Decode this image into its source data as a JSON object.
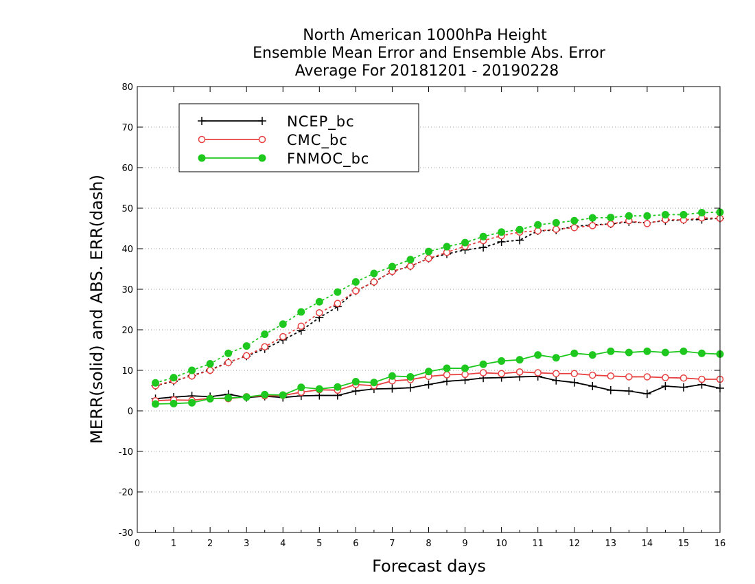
{
  "chart_data": {
    "type": "line",
    "title": [
      "North American 1000hPa Height",
      "Ensemble Mean Error and Ensemble Abs. Error",
      "Average For 20181201 - 20190228"
    ],
    "xlabel": "Forecast days",
    "ylabel": "MERR(solid) and ABS. ERR(dash)",
    "xlim": [
      0,
      16
    ],
    "ylim": [
      -30,
      80
    ],
    "xticks": [
      0,
      1,
      2,
      3,
      4,
      5,
      6,
      7,
      8,
      9,
      10,
      11,
      12,
      13,
      14,
      15,
      16
    ],
    "yticks": [
      -30,
      -20,
      -10,
      0,
      10,
      20,
      30,
      40,
      50,
      60,
      70,
      80
    ],
    "x": [
      0.5,
      1,
      1.5,
      2,
      2.5,
      3,
      3.5,
      4,
      4.5,
      5,
      5.5,
      6,
      6.5,
      7,
      7.5,
      8,
      8.5,
      9,
      9.5,
      10,
      10.5,
      11,
      11.5,
      12,
      12.5,
      13,
      13.5,
      14,
      14.5,
      15,
      15.5,
      16
    ],
    "grid": "horizontal-dotted",
    "legend_position": "top-left",
    "series": [
      {
        "name": "NCEP_bc",
        "color": "#000000",
        "marker": "plus",
        "merr": [
          3.0,
          3.4,
          3.7,
          3.5,
          4.1,
          3.3,
          3.6,
          3.3,
          3.7,
          3.8,
          3.8,
          4.9,
          5.4,
          5.5,
          5.7,
          6.5,
          7.3,
          7.6,
          8.1,
          8.2,
          8.4,
          8.5,
          7.5,
          7.0,
          6.1,
          5.1,
          4.9,
          4.2,
          6.1,
          5.8,
          6.5,
          5.6
        ],
        "abserr": [
          6.2,
          7.3,
          8.7,
          10.1,
          12.0,
          13.5,
          15.3,
          17.5,
          19.8,
          23.0,
          25.7,
          29.6,
          31.8,
          34.4,
          35.7,
          37.6,
          38.7,
          39.7,
          40.3,
          41.7,
          42.1,
          44.4,
          44.6,
          45.5,
          45.9,
          46.1,
          46.6,
          46.4,
          46.9,
          47.1,
          47.2,
          47.5
        ]
      },
      {
        "name": "CMC_bc",
        "color": "#e84040",
        "marker": "open-circle",
        "merr": [
          2.5,
          2.7,
          2.6,
          3.1,
          3.0,
          3.5,
          3.7,
          3.8,
          4.6,
          5.2,
          5.1,
          6.5,
          6.2,
          7.4,
          7.7,
          8.5,
          8.9,
          9.0,
          9.4,
          9.2,
          9.6,
          9.4,
          9.2,
          9.2,
          8.8,
          8.6,
          8.4,
          8.4,
          8.2,
          8.1,
          7.8,
          7.8
        ],
        "abserr": [
          6.2,
          7.5,
          8.6,
          10.0,
          11.9,
          13.6,
          15.8,
          18.3,
          20.9,
          24.2,
          26.5,
          29.6,
          31.8,
          34.4,
          35.7,
          37.6,
          39.1,
          40.6,
          42.0,
          43.2,
          44.1,
          44.4,
          44.8,
          45.2,
          45.7,
          46.1,
          46.9,
          46.2,
          47.2,
          47.1,
          47.6,
          47.5
        ]
      },
      {
        "name": "FNMOC_bc",
        "color": "#1ec81e",
        "marker": "filled-circle",
        "merr": [
          1.7,
          1.8,
          2.0,
          3.0,
          3.2,
          3.4,
          4.0,
          3.9,
          5.8,
          5.4,
          5.9,
          7.2,
          7.0,
          8.6,
          8.4,
          9.7,
          10.5,
          10.5,
          11.5,
          12.3,
          12.6,
          13.8,
          13.1,
          14.2,
          13.8,
          14.7,
          14.4,
          14.7,
          14.4,
          14.7,
          14.2,
          14.0
        ],
        "abserr": [
          6.9,
          8.2,
          10.0,
          11.6,
          14.2,
          16.0,
          18.9,
          21.4,
          24.4,
          26.9,
          29.3,
          31.8,
          33.9,
          35.6,
          37.3,
          39.3,
          40.5,
          41.5,
          43.0,
          44.1,
          44.7,
          45.9,
          46.4,
          46.9,
          47.6,
          47.7,
          48.1,
          48.1,
          48.4,
          48.4,
          48.9,
          49.0
        ]
      }
    ]
  }
}
